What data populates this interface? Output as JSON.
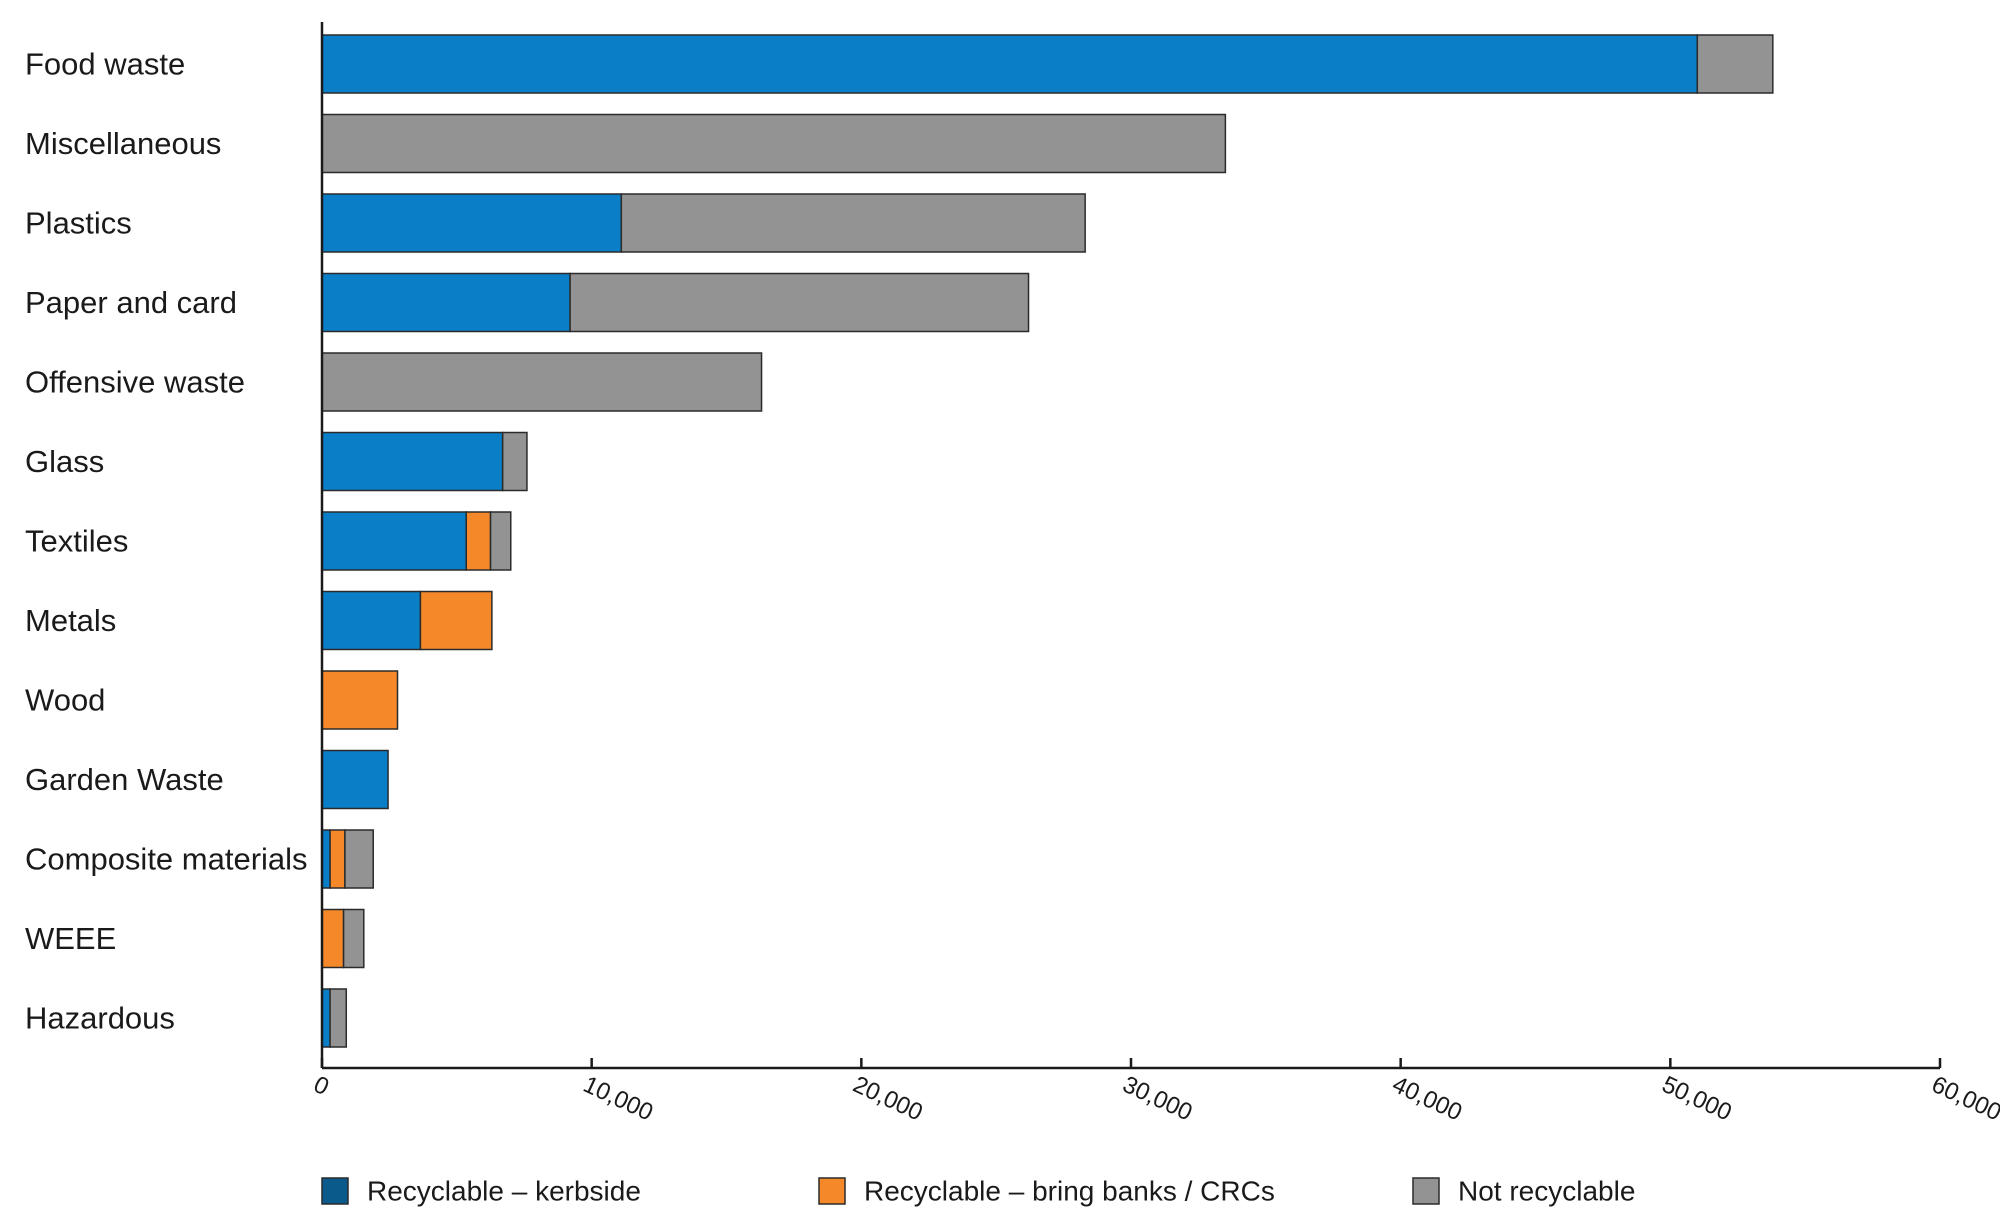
{
  "chart_data": {
    "type": "bar",
    "orientation": "horizontal",
    "stacked": true,
    "title": "",
    "xlabel": "",
    "ylabel": "",
    "xlim": [
      0,
      60000
    ],
    "x_ticks": [
      0,
      10000,
      20000,
      30000,
      40000,
      50000,
      60000
    ],
    "x_tick_labels": [
      "0",
      "10,000",
      "20,000",
      "30,000",
      "40,000",
      "50,000",
      "60,000"
    ],
    "grid": false,
    "legend_position": "bottom",
    "categories": [
      "Food waste",
      "Miscellaneous",
      "Plastics",
      "Paper and card",
      "Offensive waste",
      "Glass",
      "Textiles",
      "Metals",
      "Wood",
      "Garden Waste",
      "Composite materials",
      "WEEE",
      "Hazardous"
    ],
    "series": [
      {
        "name": "Recyclable – kerbside",
        "bar_color": "#0a7ec6",
        "legend_color": "#0b5a8c",
        "values": [
          51000,
          0,
          11100,
          9200,
          0,
          6700,
          5350,
          3650,
          0,
          2450,
          300,
          0,
          300
        ]
      },
      {
        "name": "Recyclable – bring banks / CRCs",
        "bar_color": "#f5892a",
        "legend_color": "#f5892a",
        "values": [
          0,
          0,
          0,
          0,
          0,
          0,
          900,
          2650,
          2800,
          0,
          550,
          800,
          0
        ]
      },
      {
        "name": "Not recyclable",
        "bar_color": "#939393",
        "legend_color": "#939393",
        "values": [
          2800,
          33500,
          17200,
          17000,
          16300,
          900,
          750,
          0,
          0,
          0,
          1050,
          750,
          600
        ]
      }
    ]
  }
}
